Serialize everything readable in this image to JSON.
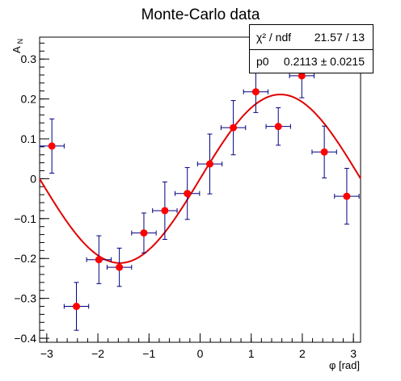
{
  "chart_data": {
    "type": "scatter",
    "title": "Monte-Carlo data",
    "xlabel": "φ [rad]",
    "ylabel_main": "A",
    "ylabel_sub": "N",
    "xlim": [
      -3.14,
      3.14
    ],
    "ylim": [
      -0.41,
      0.355
    ],
    "x_ticks": [
      -3,
      -2,
      -1,
      0,
      1,
      2,
      3
    ],
    "x_tick_labels": [
      "−3",
      "−2",
      "−1",
      "0",
      "1",
      "2",
      "3"
    ],
    "y_ticks": [
      -0.4,
      -0.3,
      -0.2,
      -0.1,
      0,
      0.1,
      0.2,
      0.3
    ],
    "y_tick_labels": [
      "−0.4",
      "−0.3",
      "−0.2",
      "−0.1",
      "0",
      "0.1",
      "0.2",
      "0.3"
    ],
    "x_minor_step": 0.2,
    "y_minor_step": 0.02,
    "grid": false,
    "points": [
      {
        "x": -2.9,
        "y": 0.082,
        "xerr": 0.24,
        "yerr": 0.068
      },
      {
        "x": -2.42,
        "y": -0.32,
        "xerr": 0.24,
        "yerr": 0.06
      },
      {
        "x": -1.98,
        "y": -0.203,
        "xerr": 0.24,
        "yerr": 0.06
      },
      {
        "x": -1.58,
        "y": -0.222,
        "xerr": 0.24,
        "yerr": 0.048
      },
      {
        "x": -1.1,
        "y": -0.136,
        "xerr": 0.24,
        "yerr": 0.05
      },
      {
        "x": -0.69,
        "y": -0.08,
        "xerr": 0.24,
        "yerr": 0.072
      },
      {
        "x": -0.25,
        "y": -0.037,
        "xerr": 0.24,
        "yerr": 0.065
      },
      {
        "x": 0.19,
        "y": 0.037,
        "xerr": 0.24,
        "yerr": 0.075
      },
      {
        "x": 0.65,
        "y": 0.128,
        "xerr": 0.24,
        "yerr": 0.068
      },
      {
        "x": 1.09,
        "y": 0.218,
        "xerr": 0.24,
        "yerr": 0.052
      },
      {
        "x": 1.53,
        "y": 0.131,
        "xerr": 0.24,
        "yerr": 0.047
      },
      {
        "x": 1.99,
        "y": 0.258,
        "xerr": 0.24,
        "yerr": 0.055
      },
      {
        "x": 2.43,
        "y": 0.067,
        "xerr": 0.24,
        "yerr": 0.065
      },
      {
        "x": 2.87,
        "y": -0.044,
        "xerr": 0.24,
        "yerr": 0.07
      }
    ],
    "fit": {
      "function": "p0*sin(x)",
      "p0": 0.2113,
      "x_range": [
        -3.14,
        3.14
      ]
    },
    "colors": {
      "marker": "#ff0000",
      "error_bar": "#000080",
      "fit": "#e00000",
      "axis": "#000000"
    }
  },
  "stats_box": {
    "row1_label": "χ² / ndf",
    "row1_value": "21.57 / 13",
    "row2_label": "p0",
    "row2_value": "0.2113 ± 0.0215"
  }
}
